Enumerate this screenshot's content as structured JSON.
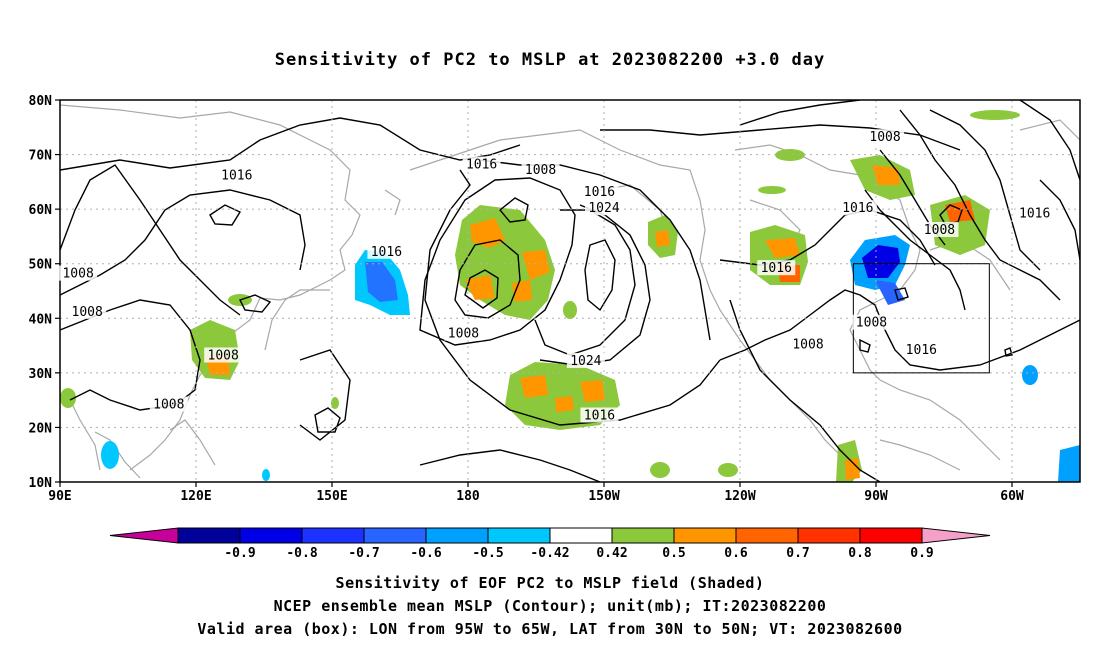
{
  "title": "Sensitivity of PC2 to MSLP at 2023082200 +3.0 day",
  "map": {
    "lat_labels": [
      "80N",
      "70N",
      "60N",
      "50N",
      "40N",
      "30N",
      "20N",
      "10N"
    ],
    "lon_labels": [
      "90E",
      "120E",
      "150E",
      "180",
      "150W",
      "120W",
      "90W",
      "60W"
    ],
    "lat_values": [
      80,
      70,
      60,
      50,
      40,
      30,
      20,
      10
    ],
    "lon_values": [
      90,
      120,
      150,
      180,
      210,
      240,
      270,
      300
    ],
    "extent": {
      "lon_min": 90,
      "lon_max": 315,
      "lat_min": 10,
      "lat_max": 80
    },
    "valid_box": {
      "lon_from": 265,
      "lon_to": 295,
      "lat_from": 30,
      "lat_to": 50
    },
    "contour_labels": [
      {
        "text": "1008",
        "lon": 272,
        "lat": 73
      },
      {
        "text": "1016",
        "lon": 129,
        "lat": 66
      },
      {
        "text": "1016",
        "lon": 183,
        "lat": 68
      },
      {
        "text": "1008",
        "lon": 196,
        "lat": 67
      },
      {
        "text": "1016",
        "lon": 209,
        "lat": 63
      },
      {
        "text": "1024",
        "lon": 210,
        "lat": 60
      },
      {
        "text": "1016",
        "lon": 162,
        "lat": 52
      },
      {
        "text": "1008",
        "lon": 94,
        "lat": 48
      },
      {
        "text": "1008",
        "lon": 96,
        "lat": 41
      },
      {
        "text": "1008",
        "lon": 179,
        "lat": 37
      },
      {
        "text": "1008",
        "lon": 126,
        "lat": 33
      },
      {
        "text": "1024",
        "lon": 206,
        "lat": 32
      },
      {
        "text": "1016",
        "lon": 248,
        "lat": 49
      },
      {
        "text": "1008",
        "lon": 255,
        "lat": 35
      },
      {
        "text": "1016",
        "lon": 266,
        "lat": 60
      },
      {
        "text": "1008",
        "lon": 284,
        "lat": 56
      },
      {
        "text": "1016",
        "lon": 305,
        "lat": 59
      },
      {
        "text": "1008",
        "lon": 269,
        "lat": 39
      },
      {
        "text": "1016",
        "lon": 280,
        "lat": 34
      },
      {
        "text": "1008",
        "lon": 114,
        "lat": 24
      },
      {
        "text": "1016",
        "lon": 209,
        "lat": 22
      }
    ]
  },
  "colorbar": {
    "labels": [
      "-0.9",
      "-0.8",
      "-0.7",
      "-0.6",
      "-0.5",
      "-0.42",
      "0.42",
      "0.5",
      "0.6",
      "0.7",
      "0.8",
      "0.9"
    ],
    "colors": [
      "#00009a",
      "#0000e6",
      "#1e32ff",
      "#2864ff",
      "#00a0ff",
      "#00c8ff",
      "#ffffff",
      "#8cc83c",
      "#ff9600",
      "#ff6400",
      "#ff3200",
      "#ff0000"
    ],
    "under_color": "#c8009a",
    "over_color": "#f5a0c8"
  },
  "captions": [
    "Sensitivity of EOF PC2 to MSLP field (Shaded)",
    "NCEP ensemble mean MSLP (Contour); unit(mb); IT:2023082200",
    "Valid area (box): LON from 95W to 65W, LAT from 30N to 50N; VT: 2023082600"
  ]
}
